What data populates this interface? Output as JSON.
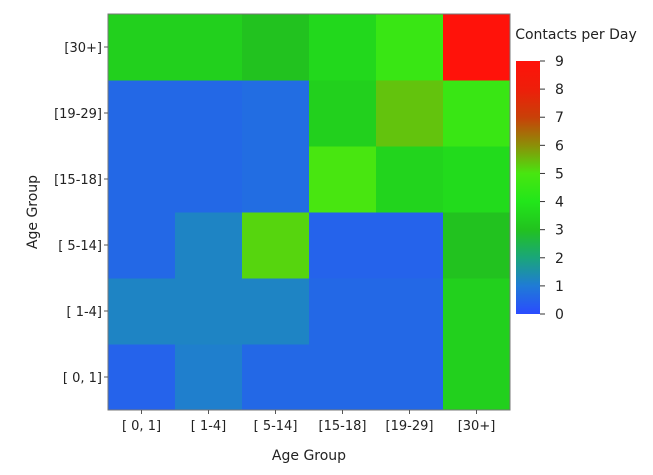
{
  "chart_data": {
    "type": "heatmap",
    "title": "",
    "xlabel": "Age Group",
    "ylabel": "Age Group",
    "x_categories": [
      "[ 0, 1]",
      "[ 1-4]",
      "[ 5-14]",
      "[15-18]",
      "[19-29]",
      "[30+]"
    ],
    "y_categories": [
      "[ 0, 1]",
      "[ 1-4]",
      "[ 5-14]",
      "[15-18]",
      "[19-29]",
      "[30+]"
    ],
    "values": [
      [
        0.5,
        1.1,
        0.6,
        0.6,
        0.6,
        3.4
      ],
      [
        1.2,
        1.2,
        1.2,
        0.6,
        0.6,
        3.4
      ],
      [
        0.6,
        1.2,
        5.2,
        0.5,
        0.5,
        3.0
      ],
      [
        0.6,
        0.6,
        0.7,
        5.0,
        3.5,
        3.7
      ],
      [
        0.6,
        0.6,
        0.7,
        3.4,
        5.4,
        4.6
      ],
      [
        3.4,
        3.4,
        3.0,
        3.6,
        4.6,
        9.0
      ]
    ],
    "colorbar": {
      "title": "Contacts per Day",
      "min": 0,
      "max": 9,
      "ticks": [
        "0",
        "1",
        "2",
        "3",
        "4",
        "5",
        "6",
        "7",
        "8",
        "9"
      ],
      "colors": [
        "#2a4bff",
        "#1f7bd6",
        "#1aa67a",
        "#22c21f",
        "#22e61a",
        "#48e610",
        "#8c8f08",
        "#c94008",
        "#ee1e0a",
        "#ff120a"
      ]
    },
    "grid": false,
    "legend": "right"
  }
}
